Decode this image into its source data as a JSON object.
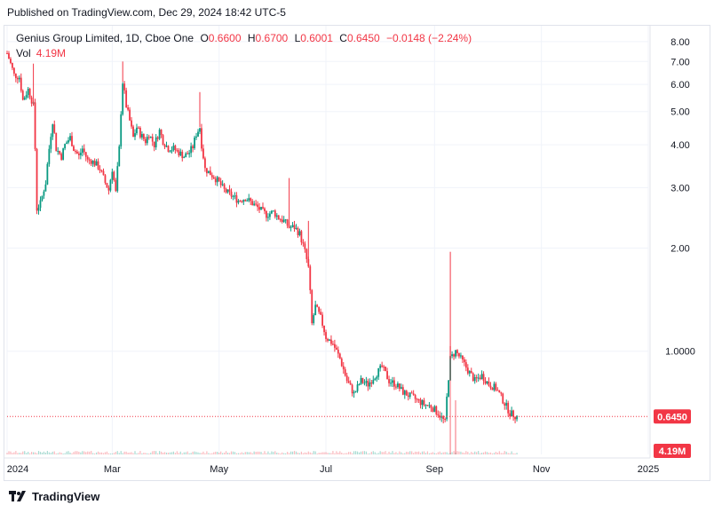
{
  "header": {
    "published": "Published on TradingView.com, Dec 29, 2024 18:42 UTC-5"
  },
  "legend": {
    "symbol": "Genius Group Limited, 1D, Cboe One",
    "o_label": "O",
    "o_value": "0.6600",
    "h_label": "H",
    "h_value": "0.6700",
    "l_label": "L",
    "l_value": "0.6001",
    "c_label": "C",
    "c_value": "0.6450",
    "change": "−0.0148 (−2.24%)",
    "vol_label": "Vol",
    "vol_value": "4.19M"
  },
  "footer": {
    "brand": "TradingView"
  },
  "colors": {
    "up": "#089981",
    "down": "#f23645",
    "grid": "#f0f3fa",
    "axis_text": "#131722"
  },
  "chart_data": {
    "type": "candlestick",
    "title": "Genius Group Limited, 1D, Cboe One",
    "y_scale": "log",
    "ylim": [
      0.5,
      8.9
    ],
    "y_ticks": [
      "8.00",
      "7.00",
      "6.00",
      "5.00",
      "4.00",
      "3.00",
      "2.00",
      "1.0000"
    ],
    "y_tick_values": [
      8,
      7,
      6,
      5,
      4,
      3,
      2,
      1
    ],
    "x_ticks": [
      "2024",
      "Mar",
      "May",
      "Jul",
      "Sep",
      "Nov",
      "2025"
    ],
    "x_tick_days": [
      0,
      60,
      121,
      182,
      244,
      305,
      366
    ],
    "x_range_days": [
      0,
      366
    ],
    "last_price_label": "0.6450",
    "last_price": 0.645,
    "volume_label": "4.19M",
    "grid": true,
    "price_points": [
      [
        0,
        7.4
      ],
      [
        4,
        6.4
      ],
      [
        7,
        6.3
      ],
      [
        9,
        5.4
      ],
      [
        12,
        5.8
      ],
      [
        15,
        5.2
      ],
      [
        17,
        2.6
      ],
      [
        19,
        2.7
      ],
      [
        22,
        3.1
      ],
      [
        24,
        3.9
      ],
      [
        26,
        4.7
      ],
      [
        28,
        3.9
      ],
      [
        31,
        3.7
      ],
      [
        33,
        4.0
      ],
      [
        36,
        4.2
      ],
      [
        38,
        3.9
      ],
      [
        41,
        3.7
      ],
      [
        43,
        3.9
      ],
      [
        46,
        3.6
      ],
      [
        48,
        3.6
      ],
      [
        51,
        3.5
      ],
      [
        53,
        3.4
      ],
      [
        56,
        3.1
      ],
      [
        58,
        2.95
      ],
      [
        60,
        3.4
      ],
      [
        62,
        2.9
      ],
      [
        64,
        3.9
      ],
      [
        66,
        6.1
      ],
      [
        68,
        5.2
      ],
      [
        70,
        4.7
      ],
      [
        72,
        4.2
      ],
      [
        74,
        4.5
      ],
      [
        76,
        4.3
      ],
      [
        79,
        4.1
      ],
      [
        81,
        4.3
      ],
      [
        84,
        4.0
      ],
      [
        87,
        4.4
      ],
      [
        89,
        4.1
      ],
      [
        92,
        3.9
      ],
      [
        95,
        3.9
      ],
      [
        98,
        3.8
      ],
      [
        101,
        3.7
      ],
      [
        104,
        3.8
      ],
      [
        106,
        3.95
      ],
      [
        108,
        4.3
      ],
      [
        110,
        4.5
      ],
      [
        111,
        4.0
      ],
      [
        113,
        3.4
      ],
      [
        116,
        3.3
      ],
      [
        120,
        3.15
      ],
      [
        124,
        2.95
      ],
      [
        128,
        2.85
      ],
      [
        132,
        2.75
      ],
      [
        136,
        2.8
      ],
      [
        140,
        2.7
      ],
      [
        144,
        2.6
      ],
      [
        148,
        2.5
      ],
      [
        152,
        2.55
      ],
      [
        155,
        2.45
      ],
      [
        158,
        2.4
      ],
      [
        161,
        2.3
      ],
      [
        164,
        2.3
      ],
      [
        167,
        2.2
      ],
      [
        170,
        1.95
      ],
      [
        172,
        1.75
      ],
      [
        174,
        1.2
      ],
      [
        176,
        1.35
      ],
      [
        179,
        1.25
      ],
      [
        182,
        1.1
      ],
      [
        186,
        1.05
      ],
      [
        190,
        0.95
      ],
      [
        194,
        0.82
      ],
      [
        198,
        0.75
      ],
      [
        202,
        0.82
      ],
      [
        206,
        0.8
      ],
      [
        210,
        0.85
      ],
      [
        214,
        0.9
      ],
      [
        218,
        0.82
      ],
      [
        222,
        0.8
      ],
      [
        226,
        0.76
      ],
      [
        230,
        0.74
      ],
      [
        234,
        0.72
      ],
      [
        238,
        0.7
      ],
      [
        242,
        0.69
      ],
      [
        246,
        0.66
      ],
      [
        250,
        0.62
      ],
      [
        253,
        0.95
      ],
      [
        256,
        1.0
      ],
      [
        259,
        0.95
      ],
      [
        263,
        0.88
      ],
      [
        267,
        0.82
      ],
      [
        271,
        0.85
      ],
      [
        275,
        0.8
      ],
      [
        279,
        0.78
      ],
      [
        283,
        0.72
      ],
      [
        287,
        0.66
      ],
      [
        291,
        0.645
      ]
    ],
    "spikes": [
      {
        "day": 15,
        "high": 6.9
      },
      {
        "day": 66,
        "high": 7.0
      },
      {
        "day": 110,
        "high": 5.7
      },
      {
        "day": 161,
        "high": 3.2
      },
      {
        "day": 172,
        "high": 2.4
      },
      {
        "day": 253,
        "high": 1.95
      }
    ],
    "volume_spikes": [
      {
        "day": 253,
        "height": 1.0
      },
      {
        "day": 256,
        "height": 0.5
      }
    ]
  }
}
